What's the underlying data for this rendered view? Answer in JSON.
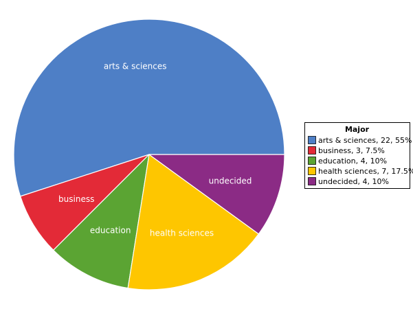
{
  "chart_data": {
    "type": "pie",
    "legend_title": "Major",
    "legend_position": "right",
    "slices": [
      {
        "label": "arts & sciences",
        "value": 22,
        "percent": "55%",
        "legend": "arts & sciences, 22, 55%",
        "color": "#4e7fc6"
      },
      {
        "label": "business",
        "value": 3,
        "percent": "7.5%",
        "legend": "business, 3, 7.5%",
        "color": "#e32a37"
      },
      {
        "label": "education",
        "value": 4,
        "percent": "10%",
        "legend": "education, 4, 10%",
        "color": "#5ba433"
      },
      {
        "label": "health sciences",
        "value": 7,
        "percent": "17.5%",
        "legend": "health sciences, 7, 17.5%",
        "color": "#fec600"
      },
      {
        "label": "undecided",
        "value": 4,
        "percent": "10%",
        "legend": "undecided, 4, 10%",
        "color": "#8b2b85"
      }
    ]
  }
}
